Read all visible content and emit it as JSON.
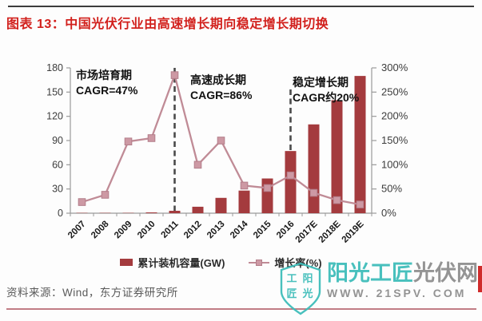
{
  "header": {
    "title": "图表 13：中国光伏行业由高速增长期向稳定增长期切换"
  },
  "chart_data": {
    "type": "bar",
    "subtype": "bar+line combo, dual axis",
    "categories": [
      "2007",
      "2008",
      "2009",
      "2010",
      "2011",
      "2012",
      "2013",
      "2014",
      "2015",
      "2016",
      "2017E",
      "2018E",
      "2019E"
    ],
    "series": [
      {
        "name": "累计装机容量(GW)",
        "type": "bar",
        "axis": "left",
        "color": "#a43b3e",
        "values": [
          0.1,
          0.2,
          0.3,
          1,
          3,
          8,
          19,
          28,
          43,
          77,
          110,
          140,
          170
        ]
      },
      {
        "name": "增长率(%)",
        "type": "line",
        "axis": "right",
        "color": "#c08b96",
        "values": [
          23,
          38,
          148,
          155,
          285,
          100,
          150,
          57,
          52,
          78,
          42,
          27,
          18
        ]
      }
    ],
    "left_axis": {
      "max": 180,
      "ticks": [
        0,
        30,
        60,
        90,
        120,
        150,
        180
      ]
    },
    "right_axis": {
      "max": 300,
      "tick_labels": [
        "0%",
        "50%",
        "100%",
        "150%",
        "200%",
        "250%",
        "300%"
      ]
    },
    "annotations": [
      {
        "line1": "市场培育期",
        "line2": "CAGR=47%"
      },
      {
        "line1": "高速成长期",
        "line2": "CAGR=86%"
      },
      {
        "line1": "稳定增长期",
        "line2": "CAGR约20%"
      }
    ],
    "phase_dividers": [
      "2011",
      "2016"
    ],
    "grid": false,
    "legend_position": "bottom"
  },
  "footer": {
    "source": "资料来源：Wind，东方证券研究所"
  },
  "watermark": {
    "badge_chars": [
      "工",
      "阳",
      "匠",
      "光"
    ],
    "brand_teal": "阳光工匠",
    "brand_gray": "光伏网",
    "url": "WWW. 21SPV. COM"
  },
  "colors": {
    "title_red": "#d2211d",
    "bar_red": "#a43b3e",
    "line_pink": "#c08b96",
    "watermark_teal": "#3fbdba",
    "watermark_gray": "#8f8f8f",
    "divider_rule_pink": "#c17d85",
    "top_rule_dark": "#3c3c3c"
  }
}
